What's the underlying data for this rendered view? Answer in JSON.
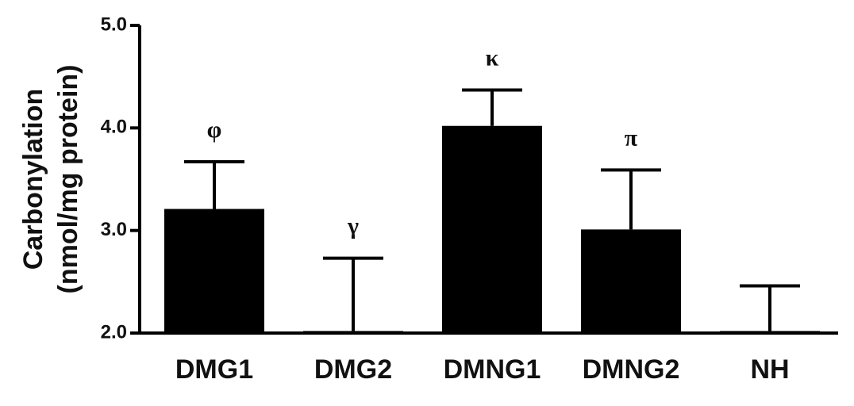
{
  "chart_data": {
    "type": "bar",
    "ylabel": [
      "Carbonylation",
      "(nmol/mg protein)"
    ],
    "categories": [
      "DMG1",
      "DMG2",
      "DMNG1",
      "DMNG2",
      "NH"
    ],
    "values": [
      3.21,
      2.02,
      4.02,
      3.01,
      2.02
    ],
    "errors": [
      0.46,
      0.71,
      0.35,
      0.58,
      0.44
    ],
    "annotations": [
      "φ",
      "γ",
      "κ",
      "π",
      null
    ],
    "color": "#000000",
    "ylim": [
      2,
      5
    ],
    "yticks": [
      {
        "value": 2,
        "label": "2.0"
      },
      {
        "value": 3,
        "label": "3.0"
      },
      {
        "value": 4,
        "label": "4.0"
      },
      {
        "value": 5,
        "label": "5.0"
      }
    ]
  }
}
